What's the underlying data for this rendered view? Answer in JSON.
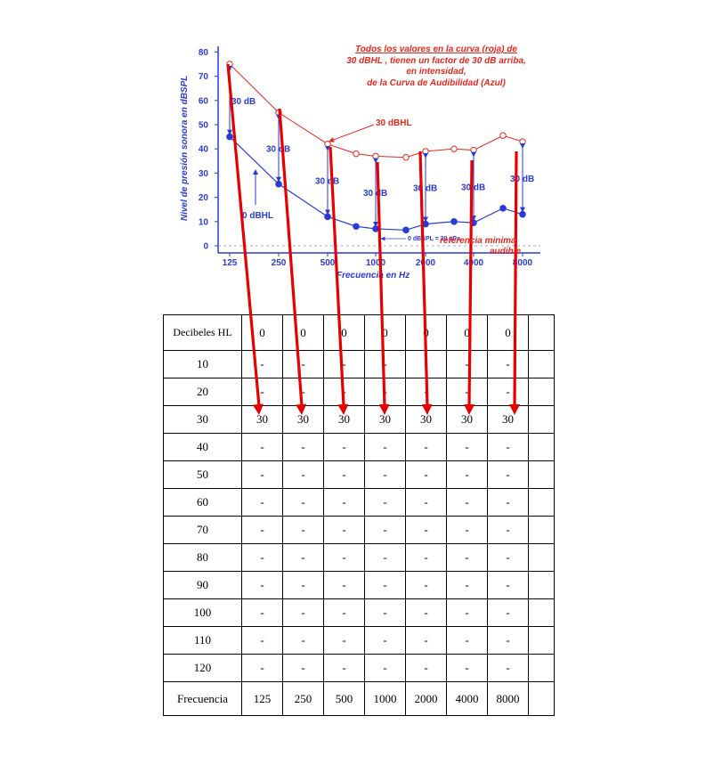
{
  "chart_data": {
    "type": "line",
    "x": [
      "125",
      "250",
      "500",
      "750",
      "1000",
      "1500",
      "2000",
      "3000",
      "4000",
      "6000",
      "8000"
    ],
    "tick_labels": [
      "125",
      "250",
      "500",
      "1000",
      "2000",
      "4000",
      "8000"
    ],
    "series": [
      {
        "color": "#e8281e",
        "values": [
          75,
          55,
          42,
          38,
          37,
          36.5,
          39,
          40,
          39.5,
          45.5,
          43
        ]
      },
      {
        "color": "#2a3ad6",
        "values": [
          45,
          25.5,
          12,
          8,
          7,
          6.5,
          9,
          10,
          9.5,
          15.5,
          13
        ]
      }
    ],
    "ylabel": "Nivel de presión sonora en dBSPL",
    "xlabel": "Frecuencia en Hz",
    "y_ticks": [
      "80",
      "70",
      "60",
      "50",
      "40",
      "30",
      "20",
      "10",
      "0"
    ],
    "ylim": [
      0,
      80
    ],
    "note_lines": [
      "Todos los valores en la curva (roja) de",
      "30 dBHL , tienen un factor de 30 dB arriba,",
      "en intensidad,",
      "de la Curva de Audibilidad (Azul)"
    ],
    "annotations": {
      "thirty_db": "30 dB",
      "thirty_dbhl": "30 dBHL",
      "zero_dbhl": "0 dBHL",
      "zero_ref": "0 dBSPL = 20 µPa",
      "referencia_1": "referencia minima",
      "referencia_2": "audible"
    }
  },
  "table": {
    "header_label": "Decibeles HL",
    "header_values": [
      "0",
      "0",
      "0",
      "0",
      "0",
      "0",
      "0"
    ],
    "rows": [
      {
        "label": "10",
        "cells": [
          "-",
          "-",
          "-",
          "-",
          "-",
          "-",
          "-"
        ]
      },
      {
        "label": "20",
        "cells": [
          "-",
          "-",
          "-",
          "-",
          "-",
          "-",
          "-"
        ]
      },
      {
        "label": "30",
        "cells": [
          "30",
          "30",
          "30",
          "30",
          "30",
          "30",
          "30"
        ]
      },
      {
        "label": "40",
        "cells": [
          "-",
          "-",
          "-",
          "-",
          "-",
          "-",
          "-"
        ]
      },
      {
        "label": "50",
        "cells": [
          "-",
          "-",
          "-",
          "-",
          "-",
          "-",
          "-"
        ]
      },
      {
        "label": "60",
        "cells": [
          "-",
          "-",
          "-",
          "-",
          "-",
          "-",
          "-"
        ]
      },
      {
        "label": "70",
        "cells": [
          "-",
          "-",
          "-",
          "-",
          "-",
          "-",
          "-"
        ]
      },
      {
        "label": "80",
        "cells": [
          "-",
          "-",
          "-",
          "-",
          "-",
          "-",
          "-"
        ]
      },
      {
        "label": "90",
        "cells": [
          "-",
          "-",
          "-",
          "-",
          "-",
          "-",
          "-"
        ]
      },
      {
        "label": "100",
        "cells": [
          "-",
          "-",
          "-",
          "-",
          "-",
          "-",
          "-"
        ]
      },
      {
        "label": "110",
        "cells": [
          "-",
          "-",
          "-",
          "-",
          "-",
          "-",
          "-"
        ]
      },
      {
        "label": "120",
        "cells": [
          "-",
          "-",
          "-",
          "-",
          "-",
          "-",
          "-"
        ]
      }
    ],
    "footer_label": "Frecuencia",
    "footer_values": [
      "125",
      "250",
      "500",
      "1000",
      "2000",
      "4000",
      "8000"
    ]
  }
}
